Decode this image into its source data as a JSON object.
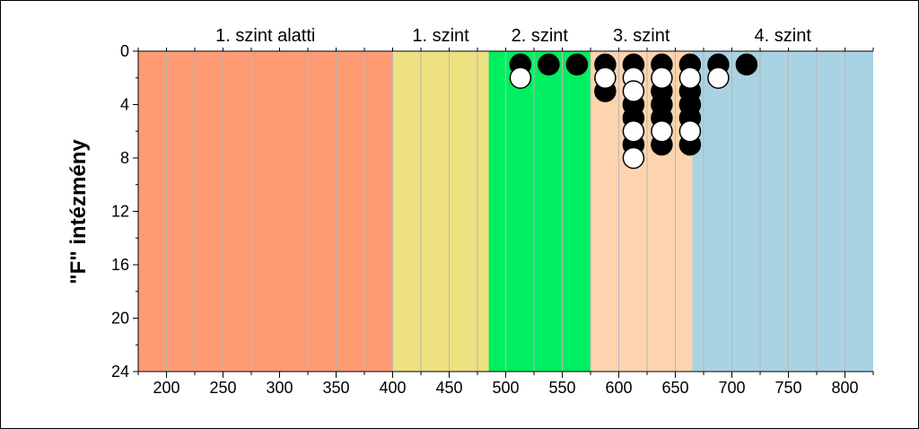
{
  "chart_data": {
    "type": "scatter",
    "ylabel": "\"F\" intézmény",
    "xlim": [
      175,
      825
    ],
    "ylim": [
      24,
      0
    ],
    "y_ticks": [
      0,
      4,
      8,
      12,
      16,
      20,
      24
    ],
    "x_ticks": [
      200,
      250,
      300,
      350,
      400,
      450,
      500,
      550,
      600,
      650,
      700,
      750,
      800
    ],
    "y_reversed": true,
    "grid": "vertical",
    "bands": [
      {
        "label": "1. szint alatti",
        "from": 175,
        "to": 400,
        "color": "#ff9b73"
      },
      {
        "label": "1. szint",
        "from": 400,
        "to": 485,
        "color": "#ede181"
      },
      {
        "label": "2. szint",
        "from": 485,
        "to": 575,
        "color": "#00ee61"
      },
      {
        "label": "3. szint",
        "from": 575,
        "to": 665,
        "color": "#fdd4ae"
      },
      {
        "label": "4. szint",
        "from": 665,
        "to": 825,
        "color": "#a9d3e2"
      }
    ],
    "series": [
      {
        "marker": "filled-black",
        "points": [
          [
            513,
            1
          ],
          [
            538,
            1
          ],
          [
            563,
            1
          ],
          [
            588,
            1
          ],
          [
            588,
            3
          ],
          [
            613,
            1
          ],
          [
            613,
            4
          ],
          [
            613,
            5
          ],
          [
            613,
            7
          ],
          [
            638,
            1
          ],
          [
            638,
            3
          ],
          [
            638,
            4
          ],
          [
            638,
            5
          ],
          [
            638,
            7
          ],
          [
            663,
            1
          ],
          [
            663,
            3
          ],
          [
            663,
            4
          ],
          [
            663,
            5
          ],
          [
            663,
            7
          ],
          [
            688,
            1
          ],
          [
            713,
            1
          ]
        ]
      },
      {
        "marker": "hollow-white",
        "points": [
          [
            513,
            2
          ],
          [
            588,
            2
          ],
          [
            613,
            2
          ],
          [
            613,
            3
          ],
          [
            613,
            6
          ],
          [
            613,
            8
          ],
          [
            638,
            2
          ],
          [
            638,
            6
          ],
          [
            663,
            2
          ],
          [
            663,
            6
          ],
          [
            688,
            2
          ]
        ]
      }
    ]
  }
}
